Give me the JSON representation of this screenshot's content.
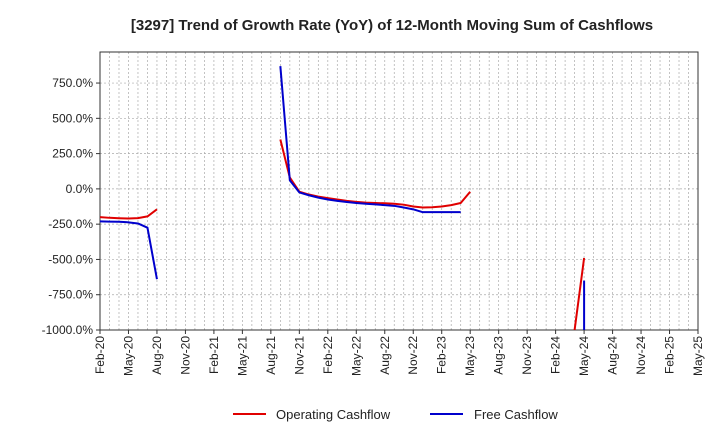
{
  "chart_data": {
    "type": "line",
    "title": "[3297]  Trend of Growth Rate (YoY) of 12-Month Moving Sum of Cashflows",
    "xlabel": "",
    "ylabel": "",
    "x_tick_labels": [
      "Feb-20",
      "May-20",
      "Aug-20",
      "Nov-20",
      "Feb-21",
      "May-21",
      "Aug-21",
      "Nov-21",
      "Feb-22",
      "May-22",
      "Aug-22",
      "Nov-22",
      "Feb-23",
      "May-23",
      "Aug-23",
      "Nov-23",
      "Feb-24",
      "May-24",
      "Aug-24",
      "Nov-24",
      "Feb-25",
      "May-25"
    ],
    "y_tick_labels": [
      "750.0%",
      "500.0%",
      "250.0%",
      "0.0%",
      "-250.0%",
      "-500.0%",
      "-750.0%",
      "-1000.0%"
    ],
    "y_ticks": [
      750,
      500,
      250,
      0,
      -250,
      -500,
      -750,
      -1000
    ],
    "ylim": [
      -1000,
      970
    ],
    "xlim": [
      "2020-02",
      "2025-05"
    ],
    "grid": true,
    "legend_position": "bottom",
    "series": [
      {
        "name": "Operating Cashflow",
        "color": "#e00000",
        "segments": [
          [
            [
              "2020-02",
              -200
            ],
            [
              "2020-03",
              -205
            ],
            [
              "2020-04",
              -208
            ],
            [
              "2020-05",
              -210
            ],
            [
              "2020-06",
              -207
            ],
            [
              "2020-07",
              -195
            ],
            [
              "2020-08",
              -145
            ]
          ],
          [
            [
              "2021-09",
              350
            ],
            [
              "2021-10",
              80
            ],
            [
              "2021-11",
              -20
            ],
            [
              "2021-12",
              -40
            ],
            [
              "2022-01",
              -55
            ],
            [
              "2022-02",
              -65
            ],
            [
              "2022-03",
              -75
            ],
            [
              "2022-04",
              -85
            ],
            [
              "2022-05",
              -92
            ],
            [
              "2022-06",
              -97
            ],
            [
              "2022-07",
              -100
            ],
            [
              "2022-08",
              -102
            ],
            [
              "2022-09",
              -105
            ],
            [
              "2022-10",
              -112
            ],
            [
              "2022-11",
              -125
            ],
            [
              "2022-12",
              -132
            ],
            [
              "2023-01",
              -130
            ],
            [
              "2023-02",
              -125
            ],
            [
              "2023-03",
              -115
            ],
            [
              "2023-04",
              -100
            ],
            [
              "2023-05",
              -20
            ]
          ],
          [
            [
              "2024-04",
              -1000
            ],
            [
              "2024-05",
              -490
            ]
          ]
        ]
      },
      {
        "name": "Free Cashflow",
        "color": "#0000cc",
        "segments": [
          [
            [
              "2020-02",
              -230
            ],
            [
              "2020-03",
              -232
            ],
            [
              "2020-04",
              -233
            ],
            [
              "2020-05",
              -237
            ],
            [
              "2020-06",
              -245
            ],
            [
              "2020-07",
              -275
            ],
            [
              "2020-08",
              -640
            ]
          ],
          [
            [
              "2021-09",
              870
            ],
            [
              "2021-10",
              60
            ],
            [
              "2021-11",
              -25
            ],
            [
              "2021-12",
              -45
            ],
            [
              "2022-01",
              -62
            ],
            [
              "2022-02",
              -75
            ],
            [
              "2022-03",
              -85
            ],
            [
              "2022-04",
              -93
            ],
            [
              "2022-05",
              -100
            ],
            [
              "2022-06",
              -105
            ],
            [
              "2022-07",
              -110
            ],
            [
              "2022-08",
              -115
            ],
            [
              "2022-09",
              -120
            ],
            [
              "2022-10",
              -132
            ],
            [
              "2022-11",
              -145
            ],
            [
              "2022-12",
              -165
            ],
            [
              "2023-01",
              -165
            ],
            [
              "2023-02",
              -165
            ],
            [
              "2023-03",
              -165
            ],
            [
              "2023-04",
              -165
            ]
          ],
          [
            [
              "2024-05",
              -1000
            ],
            [
              "2024-05",
              -650
            ]
          ]
        ]
      }
    ]
  }
}
